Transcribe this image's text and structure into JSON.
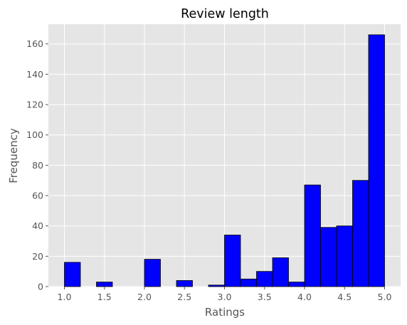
{
  "chart_data": {
    "type": "bar",
    "title": "Review length",
    "xlabel": "Ratings",
    "ylabel": "Frequency",
    "xlim": [
      0.8,
      5.2
    ],
    "ylim": [
      0,
      173
    ],
    "xticks": [
      1.0,
      1.5,
      2.0,
      2.5,
      3.0,
      3.5,
      4.0,
      4.5,
      5.0
    ],
    "xtick_labels": [
      "1.0",
      "1.5",
      "2.0",
      "2.5",
      "3.0",
      "3.5",
      "4.0",
      "4.5",
      "5.0"
    ],
    "yticks": [
      0,
      20,
      40,
      60,
      80,
      100,
      120,
      140,
      160
    ],
    "ytick_labels": [
      "0",
      "20",
      "40",
      "60",
      "80",
      "100",
      "120",
      "140",
      "160"
    ],
    "bin_edges": [
      1.0,
      1.2,
      1.4,
      1.6,
      1.8,
      2.0,
      2.2,
      2.4,
      2.6,
      2.8,
      3.0,
      3.2,
      3.4,
      3.6,
      3.8,
      4.0,
      4.2,
      4.4,
      4.6,
      4.8,
      5.0
    ],
    "values": [
      16,
      0,
      3,
      0,
      0,
      18,
      0,
      4,
      0,
      1,
      34,
      5,
      10,
      19,
      3,
      67,
      39,
      40,
      70,
      166
    ],
    "grid": true,
    "background": "#e5e5e5",
    "bar_color": "#0000ff",
    "bar_edge_color": "#000000"
  }
}
